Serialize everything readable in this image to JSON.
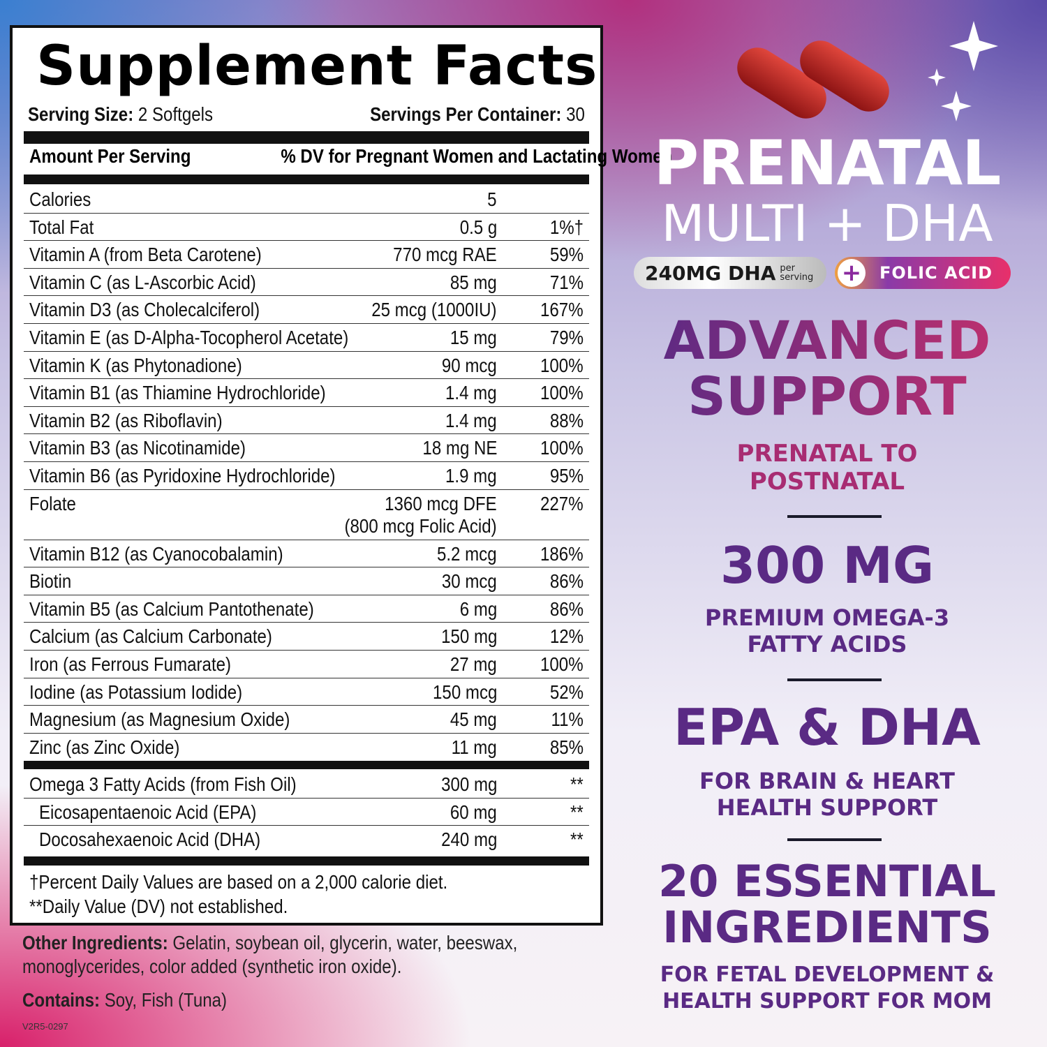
{
  "facts": {
    "title": "Supplement Facts",
    "serving_size_label": "Serving Size:",
    "serving_size": "2 Softgels",
    "servings_label": "Servings Per Container:",
    "servings": "30",
    "amount_header": "Amount Per Serving",
    "dv_header": "% DV for Pregnant Women and Lactating Women",
    "rows": [
      {
        "name": "Calories",
        "amount": "5",
        "dv": ""
      },
      {
        "name": "Total Fat",
        "amount": "0.5 g",
        "dv": "1%†"
      },
      {
        "name": "Vitamin A (from Beta Carotene)",
        "amount": "770 mcg RAE",
        "dv": "59%"
      },
      {
        "name": "Vitamin C (as L-Ascorbic Acid)",
        "amount": "85 mg",
        "dv": "71%"
      },
      {
        "name": "Vitamin D3 (as Cholecalciferol)",
        "amount": "25 mcg (1000IU)",
        "dv": "167%"
      },
      {
        "name": "Vitamin E (as D-Alpha-Tocopherol Acetate)",
        "amount": "15 mg",
        "dv": "79%"
      },
      {
        "name": "Vitamin K (as Phytonadione)",
        "amount": "90 mcg",
        "dv": "100%"
      },
      {
        "name": "Vitamin B1 (as Thiamine Hydrochloride)",
        "amount": "1.4 mg",
        "dv": "100%"
      },
      {
        "name": "Vitamin B2 (as Riboflavin)",
        "amount": "1.4 mg",
        "dv": "88%"
      },
      {
        "name": "Vitamin B3 (as Nicotinamide)",
        "amount": "18 mg NE",
        "dv": "100%"
      },
      {
        "name": "Vitamin B6 (as Pyridoxine Hydrochloride)",
        "amount": "1.9 mg",
        "dv": "95%"
      },
      {
        "name": "Folate",
        "amount": "1360 mcg DFE",
        "amount2": "(800 mcg Folic Acid)",
        "dv": "227%"
      },
      {
        "name": "Vitamin B12 (as Cyanocobalamin)",
        "amount": "5.2 mcg",
        "dv": "186%"
      },
      {
        "name": "Biotin",
        "amount": "30 mcg",
        "dv": "86%"
      },
      {
        "name": "Vitamin B5 (as Calcium Pantothenate)",
        "amount": "6 mg",
        "dv": "86%"
      },
      {
        "name": "Calcium (as Calcium Carbonate)",
        "amount": "150 mg",
        "dv": "12%"
      },
      {
        "name": "Iron (as Ferrous Fumarate)",
        "amount": "27 mg",
        "dv": "100%"
      },
      {
        "name": "Iodine (as Potassium Iodide)",
        "amount": "150 mcg",
        "dv": "52%"
      },
      {
        "name": "Magnesium (as Magnesium Oxide)",
        "amount": "45 mg",
        "dv": "11%"
      },
      {
        "name": "Zinc (as Zinc Oxide)",
        "amount": "11 mg",
        "dv": "85%"
      }
    ],
    "omega_rows": [
      {
        "name": "Omega 3 Fatty Acids (from Fish Oil)",
        "amount": "300 mg",
        "dv": "**"
      },
      {
        "name": "Eicosapentaenoic Acid (EPA)",
        "amount": "60 mg",
        "dv": "**"
      },
      {
        "name": "Docosahexaenoic Acid (DHA)",
        "amount": "240 mg",
        "dv": "**"
      }
    ],
    "footnote1": "†Percent Daily Values are based on a 2,000 calorie diet.",
    "footnote2": "**Daily Value (DV) not established."
  },
  "other": {
    "ingredients_label": "Other Ingredients:",
    "ingredients": "Gelatin, soybean oil, glycerin, water, beeswax,",
    "ingredients2": "monoglycerides, color added (synthetic iron oxide).",
    "contains_label": "Contains:",
    "contains": "Soy, Fish (Tuna)",
    "code": "V2R5-0297"
  },
  "promo": {
    "title1": "PRENATAL",
    "title2": "MULTI + DHA",
    "badge_dha": "240MG DHA",
    "badge_per": "per",
    "badge_serving": "serving",
    "badge_folic": "FOLIC ACID",
    "h1a": "ADVANCED",
    "h1b": "SUPPORT",
    "s1a": "PRENATAL TO",
    "s1b": "POSTNATAL",
    "h2": "300 MG",
    "s2a": "PREMIUM OMEGA-3",
    "s2b": "FATTY ACIDS",
    "h3": "EPA & DHA",
    "s3a": "FOR BRAIN & HEART",
    "s3b": "HEALTH SUPPORT",
    "h4a": "20 ESSENTIAL",
    "h4b": "INGREDIENTS",
    "s4a": "FOR FETAL DEVELOPMENT &",
    "s4b": "HEALTH SUPPORT FOR MOM"
  },
  "colors": {
    "purple": "#5a2a84",
    "pink": "#a82c72",
    "capsule": "#c0201e"
  }
}
